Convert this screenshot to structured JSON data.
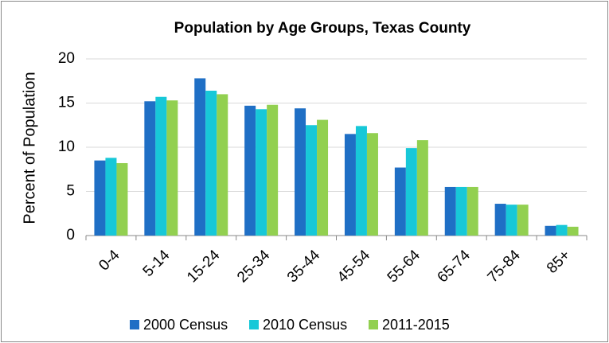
{
  "chart_data": {
    "type": "bar",
    "title": "Population by Age Groups, Texas County",
    "y_label": "Percent of Population",
    "categories": [
      "0-4",
      "5-14",
      "15-24",
      "25-34",
      "35-44",
      "45-54",
      "55-64",
      "65-74",
      "75-84",
      "85+"
    ],
    "series": [
      {
        "name": "2000 Census",
        "color": "#1f6fc5",
        "values": [
          8.5,
          15.2,
          17.8,
          14.7,
          14.4,
          11.5,
          7.7,
          5.5,
          3.6,
          1.1
        ]
      },
      {
        "name": "2010 Census",
        "color": "#17c8d8",
        "values": [
          8.8,
          15.7,
          16.4,
          14.3,
          12.5,
          12.4,
          9.9,
          5.5,
          3.5,
          1.2
        ]
      },
      {
        "name": "2011-2015",
        "color": "#92d050",
        "values": [
          8.2,
          15.3,
          16.0,
          14.8,
          13.1,
          11.6,
          10.8,
          5.5,
          3.5,
          1.0
        ]
      }
    ],
    "ylim": [
      0,
      20
    ],
    "yticks": [
      0,
      5,
      10,
      15,
      20
    ],
    "grid": true,
    "legend": "bottom"
  }
}
